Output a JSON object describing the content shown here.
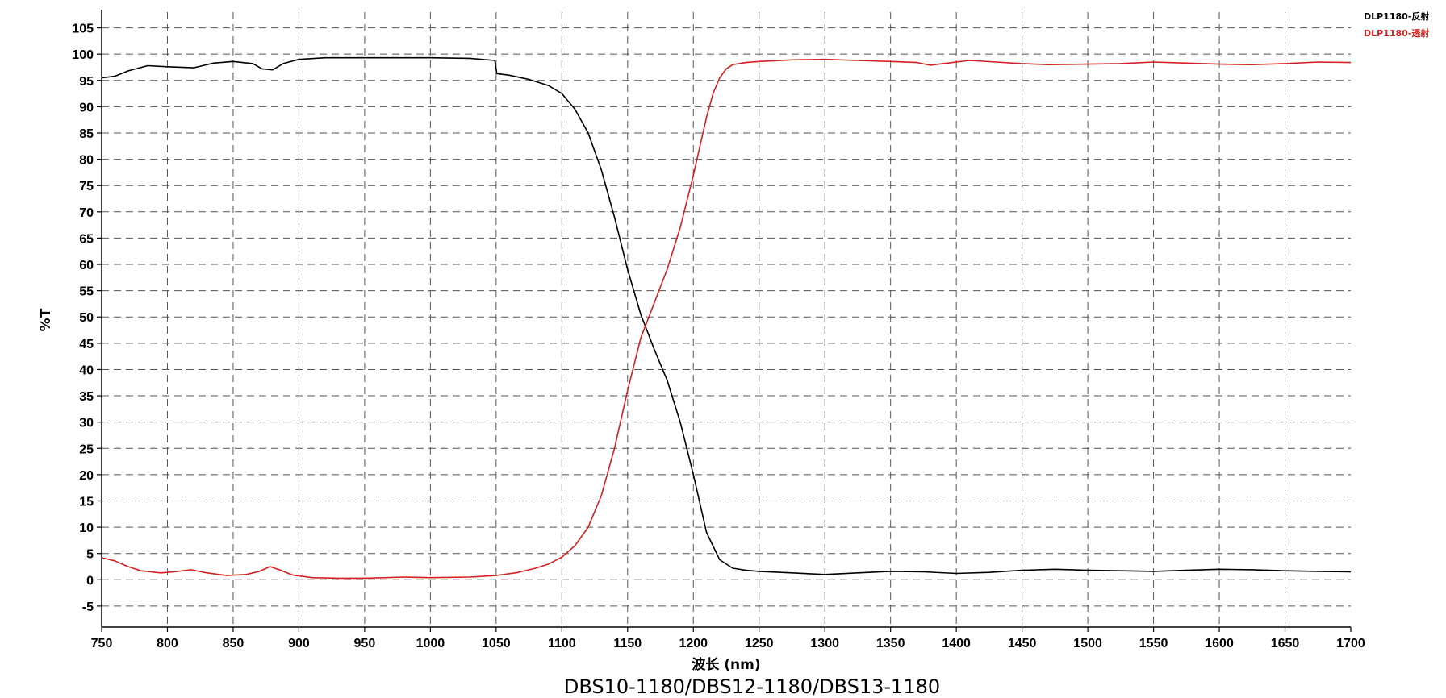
{
  "chart_data": {
    "type": "line",
    "caption": "DBS10-1180/DBS12-1180/DBS13-1180",
    "xlabel": "波长 (nm)",
    "ylabel": "%T",
    "xlim": [
      750,
      1700
    ],
    "ylim": [
      -9,
      108
    ],
    "xticks": [
      750,
      800,
      850,
      900,
      950,
      1000,
      1050,
      1100,
      1150,
      1200,
      1250,
      1300,
      1350,
      1400,
      1450,
      1500,
      1550,
      1600,
      1650,
      1700
    ],
    "yticks": [
      -5,
      0,
      5,
      10,
      15,
      20,
      25,
      30,
      35,
      40,
      45,
      50,
      55,
      60,
      65,
      70,
      75,
      80,
      85,
      90,
      95,
      100,
      105
    ],
    "grid": true,
    "legend_position": "top-right",
    "series": [
      {
        "name": "DLP1180-反射",
        "color": "#000000",
        "x": [
          750,
          760,
          770,
          785,
          800,
          820,
          835,
          850,
          865,
          872,
          880,
          888,
          900,
          920,
          950,
          1000,
          1030,
          1049,
          1050.5,
          1060,
          1075,
          1090,
          1100,
          1110,
          1120,
          1130,
          1140,
          1150,
          1160,
          1170,
          1180,
          1190,
          1200,
          1210,
          1220,
          1230,
          1240,
          1250,
          1275,
          1300,
          1325,
          1350,
          1375,
          1400,
          1425,
          1450,
          1475,
          1500,
          1525,
          1550,
          1575,
          1600,
          1625,
          1650,
          1675,
          1700
        ],
        "values": [
          95.5,
          95.8,
          96.8,
          97.8,
          97.6,
          97.4,
          98.3,
          98.6,
          98.2,
          97.2,
          97.0,
          98.2,
          99.0,
          99.3,
          99.3,
          99.3,
          99.2,
          98.8,
          96.3,
          96.0,
          95.2,
          94.0,
          92.5,
          89.5,
          85.0,
          78.0,
          69.0,
          59.0,
          50.5,
          44.0,
          38.0,
          30.0,
          20.0,
          9.0,
          3.8,
          2.2,
          1.8,
          1.6,
          1.3,
          1.0,
          1.3,
          1.6,
          1.5,
          1.2,
          1.4,
          1.8,
          2.0,
          1.8,
          1.7,
          1.6,
          1.8,
          2.0,
          1.9,
          1.7,
          1.6,
          1.5
        ]
      },
      {
        "name": "DLP1180-透射",
        "color": "#d42020",
        "x": [
          750,
          760,
          770,
          780,
          795,
          805,
          818,
          830,
          845,
          860,
          870,
          878,
          885,
          895,
          910,
          930,
          950,
          980,
          1000,
          1030,
          1050,
          1065,
          1080,
          1090,
          1100,
          1110,
          1120,
          1130,
          1140,
          1150,
          1160,
          1170,
          1180,
          1190,
          1200,
          1210,
          1215,
          1220,
          1225,
          1230,
          1240,
          1250,
          1275,
          1300,
          1325,
          1350,
          1370,
          1380,
          1390,
          1410,
          1430,
          1450,
          1470,
          1500,
          1525,
          1550,
          1575,
          1600,
          1625,
          1650,
          1675,
          1700
        ],
        "values": [
          4.2,
          3.6,
          2.5,
          1.7,
          1.3,
          1.5,
          1.9,
          1.3,
          0.8,
          1.0,
          1.6,
          2.5,
          1.9,
          0.9,
          0.4,
          0.3,
          0.3,
          0.5,
          0.4,
          0.5,
          0.8,
          1.3,
          2.2,
          3.0,
          4.3,
          6.5,
          10.0,
          16.0,
          25.0,
          36.0,
          46.0,
          52.5,
          59.0,
          67.0,
          77.0,
          88.0,
          92.5,
          95.5,
          97.2,
          98.0,
          98.4,
          98.6,
          98.9,
          99.0,
          98.8,
          98.6,
          98.4,
          97.9,
          98.2,
          98.8,
          98.5,
          98.2,
          98.0,
          98.1,
          98.2,
          98.5,
          98.3,
          98.1,
          98.0,
          98.2,
          98.5,
          98.4
        ]
      }
    ]
  }
}
